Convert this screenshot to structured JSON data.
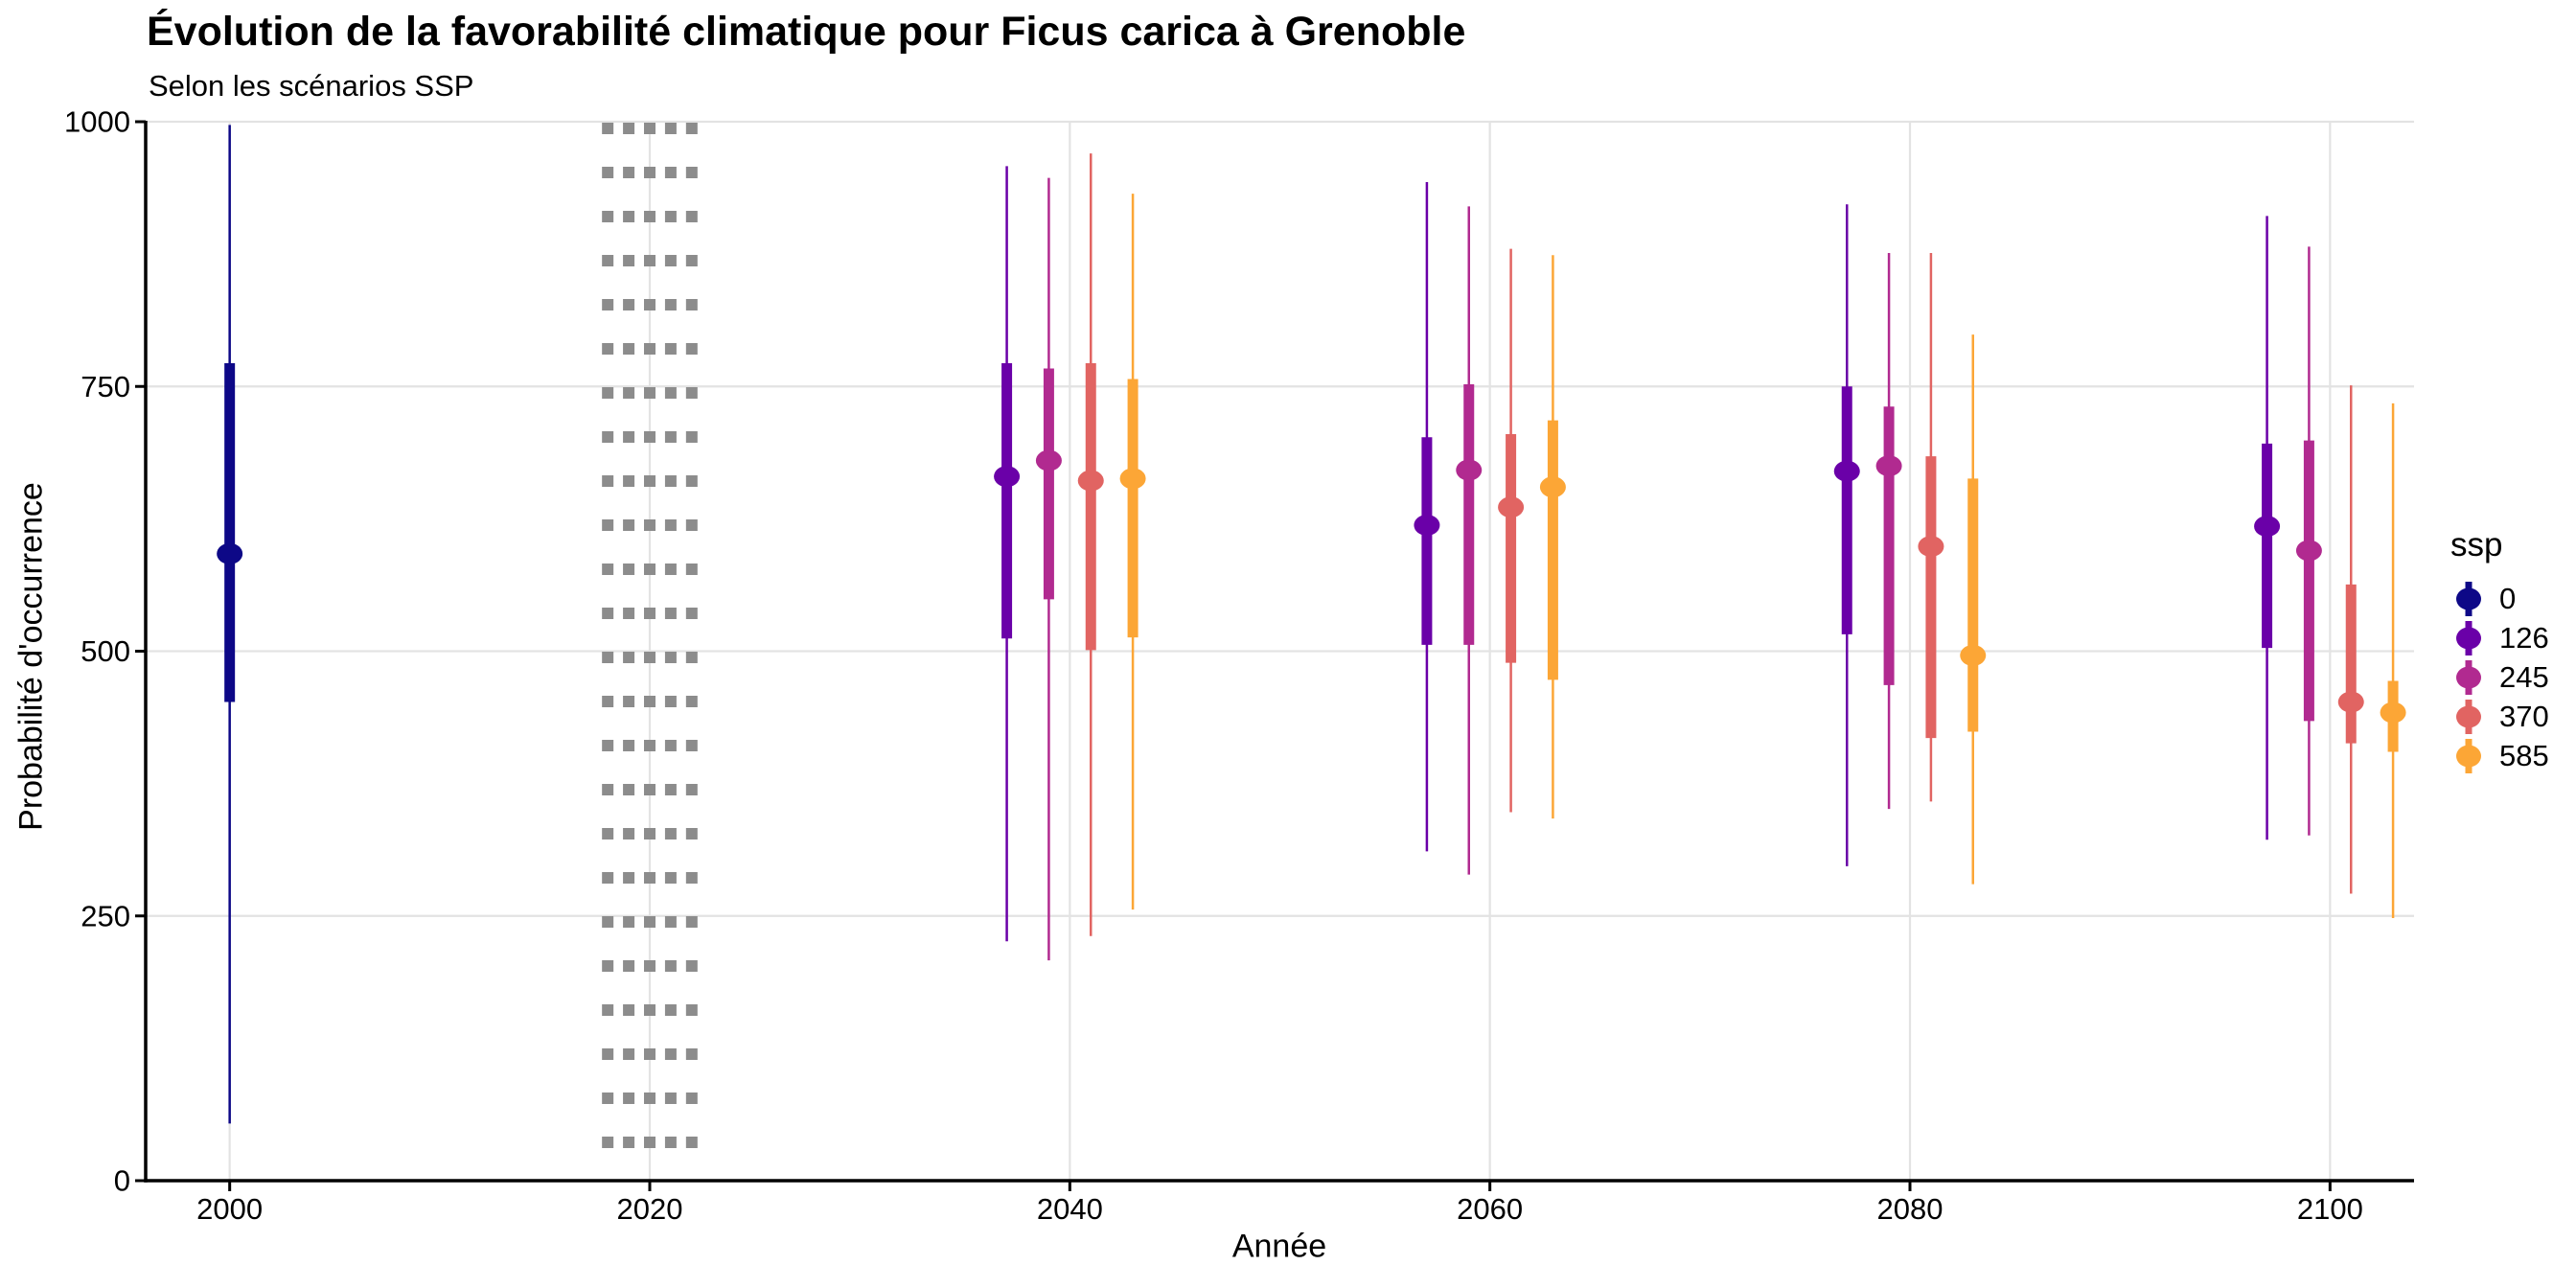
{
  "chart_data": {
    "type": "pointrange",
    "title": "Évolution de la favorabilité climatique pour Ficus carica à Grenoble",
    "subtitle": "Selon les scénarios SSP",
    "xlabel": "Année",
    "ylabel": "Probabilité d'occurrence",
    "xlim": [
      1996,
      2104
    ],
    "ylim": [
      0,
      1000
    ],
    "x_ticks": [
      2000,
      2020,
      2040,
      2060,
      2080,
      2100
    ],
    "y_ticks": [
      0,
      250,
      500,
      750,
      1000
    ],
    "grid": true,
    "reference_dotted_years": [
      2018,
      2019,
      2020,
      2021,
      2022
    ],
    "legend": {
      "title": "ssp",
      "position": "right",
      "entries": [
        {
          "label": "0",
          "color": "#0D0887"
        },
        {
          "label": "126",
          "color": "#6A00A8"
        },
        {
          "label": "245",
          "color": "#B12A90"
        },
        {
          "label": "370",
          "color": "#E16462"
        },
        {
          "label": "585",
          "color": "#FCA636"
        }
      ]
    },
    "series": [
      {
        "ssp": "0",
        "color": "#0D0887",
        "points": [
          {
            "year": 2000,
            "offset": 0,
            "low95": 54,
            "low50": 452,
            "mid": 592,
            "high50": 772,
            "high95": 997
          }
        ]
      },
      {
        "ssp": "126",
        "color": "#6A00A8",
        "points": [
          {
            "year": 2040,
            "offset": -3,
            "low95": 226,
            "low50": 512,
            "mid": 665,
            "high50": 772,
            "high95": 958
          },
          {
            "year": 2060,
            "offset": -3,
            "low95": 311,
            "low50": 506,
            "mid": 619,
            "high50": 702,
            "high95": 943
          },
          {
            "year": 2080,
            "offset": -3,
            "low95": 297,
            "low50": 516,
            "mid": 670,
            "high50": 750,
            "high95": 922
          },
          {
            "year": 2100,
            "offset": -3,
            "low95": 322,
            "low50": 503,
            "mid": 618,
            "high50": 696,
            "high95": 911
          }
        ]
      },
      {
        "ssp": "245",
        "color": "#B12A90",
        "points": [
          {
            "year": 2040,
            "offset": -1,
            "low95": 208,
            "low50": 549,
            "mid": 680,
            "high50": 767,
            "high95": 947
          },
          {
            "year": 2060,
            "offset": -1,
            "low95": 289,
            "low50": 506,
            "mid": 671,
            "high50": 752,
            "high95": 920
          },
          {
            "year": 2080,
            "offset": -1,
            "low95": 351,
            "low50": 468,
            "mid": 675,
            "high50": 731,
            "high95": 876
          },
          {
            "year": 2100,
            "offset": -1,
            "low95": 326,
            "low50": 434,
            "mid": 595,
            "high50": 699,
            "high95": 882
          }
        ]
      },
      {
        "ssp": "370",
        "color": "#E16462",
        "points": [
          {
            "year": 2040,
            "offset": 1,
            "low95": 231,
            "low50": 501,
            "mid": 661,
            "high50": 772,
            "high95": 970
          },
          {
            "year": 2060,
            "offset": 1,
            "low95": 348,
            "low50": 489,
            "mid": 636,
            "high50": 705,
            "high95": 880
          },
          {
            "year": 2080,
            "offset": 1,
            "low95": 358,
            "low50": 418,
            "mid": 599,
            "high50": 684,
            "high95": 876
          },
          {
            "year": 2100,
            "offset": 1,
            "low95": 271,
            "low50": 413,
            "mid": 452,
            "high50": 563,
            "high95": 751
          }
        ]
      },
      {
        "ssp": "585",
        "color": "#FCA636",
        "points": [
          {
            "year": 2040,
            "offset": 3,
            "low95": 256,
            "low50": 513,
            "mid": 663,
            "high50": 757,
            "high95": 932
          },
          {
            "year": 2060,
            "offset": 3,
            "low95": 342,
            "low50": 473,
            "mid": 655,
            "high50": 718,
            "high95": 874
          },
          {
            "year": 2080,
            "offset": 3,
            "low95": 280,
            "low50": 424,
            "mid": 496,
            "high50": 663,
            "high95": 799
          },
          {
            "year": 2100,
            "offset": 3,
            "low95": 248,
            "low50": 405,
            "mid": 442,
            "high50": 472,
            "high95": 734
          }
        ]
      }
    ],
    "colors": {
      "grid": "#E3E3E3",
      "axis": "#000000",
      "dotted_reference": "#8C8C8C",
      "text": "#000000"
    }
  }
}
